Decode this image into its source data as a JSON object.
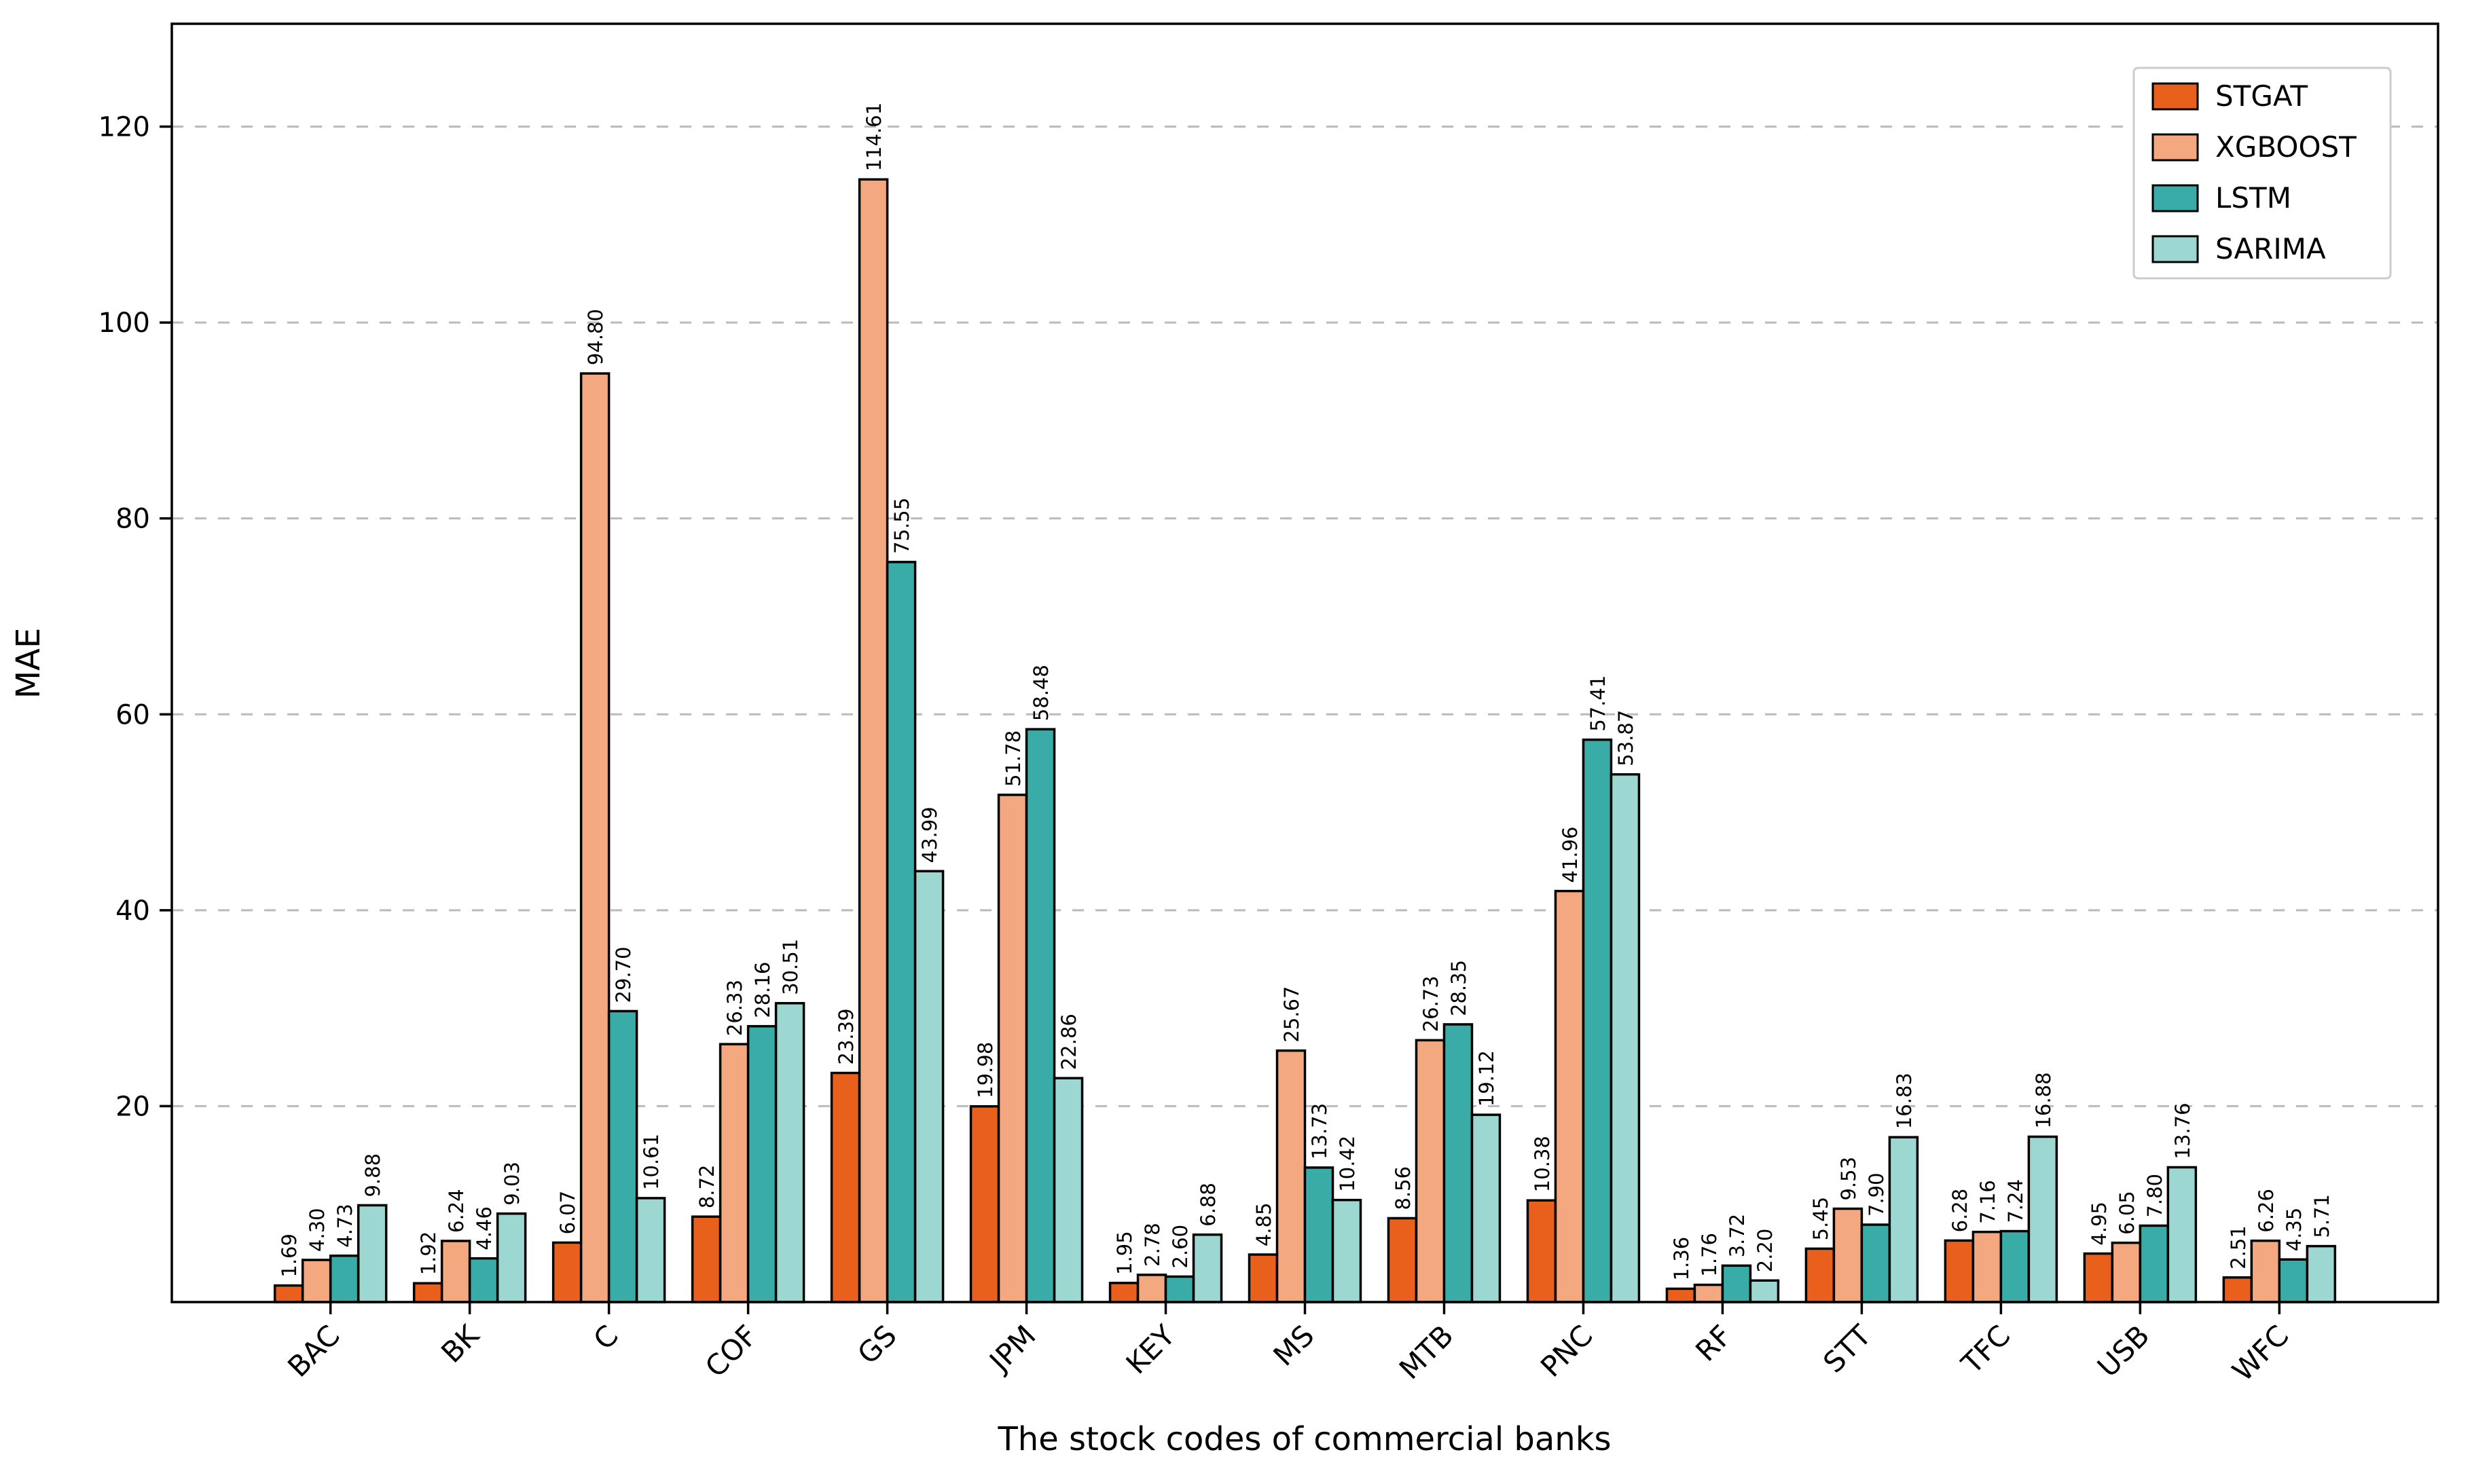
{
  "figure": {
    "xlabel": "The stock codes of commercial banks",
    "ylabel": "MAE"
  },
  "chart_data": {
    "type": "bar",
    "title": "",
    "xlabel": "The stock codes of commercial banks",
    "ylabel": "MAE",
    "categories": [
      "BAC",
      "BK",
      "C",
      "COF",
      "GS",
      "JPM",
      "KEY",
      "MS",
      "MTB",
      "PNC",
      "RF",
      "STT",
      "TFC",
      "USB",
      "WFC"
    ],
    "series": [
      {
        "name": "STGAT",
        "color": "#E8601C",
        "values": [
          1.69,
          1.92,
          6.07,
          8.72,
          23.39,
          19.98,
          1.95,
          4.85,
          8.56,
          10.38,
          1.36,
          5.45,
          6.28,
          4.95,
          2.51
        ]
      },
      {
        "name": "XGBOOST",
        "color": "#F4A880",
        "values": [
          4.3,
          6.24,
          94.8,
          26.33,
          114.61,
          51.78,
          2.78,
          25.67,
          26.73,
          41.96,
          1.76,
          9.53,
          7.16,
          6.05,
          6.26
        ]
      },
      {
        "name": "LSTM",
        "color": "#3AACA8",
        "values": [
          4.73,
          4.46,
          29.7,
          28.16,
          75.55,
          58.48,
          2.6,
          13.73,
          28.35,
          57.41,
          3.72,
          7.9,
          7.24,
          7.8,
          4.35
        ]
      },
      {
        "name": "SARIMA",
        "color": "#9CD7D2",
        "values": [
          9.88,
          9.03,
          10.61,
          30.51,
          43.99,
          22.86,
          6.88,
          10.42,
          19.12,
          53.87,
          2.2,
          16.83,
          16.88,
          13.76,
          5.71
        ]
      }
    ],
    "ylim": [
      0,
      130.5
    ],
    "yticks": [
      20,
      40,
      60,
      80,
      100,
      120
    ],
    "grid": "horizontal-dashed",
    "grid_color": "#bbbbbb",
    "bar_edge_color": "#000000",
    "legend_position": "upper-right",
    "legend_labels": [
      "STGAT",
      "XGBOOST",
      "LSTM",
      "SARIMA"
    ],
    "value_label_rotation": 90,
    "xtick_rotation": 45
  }
}
